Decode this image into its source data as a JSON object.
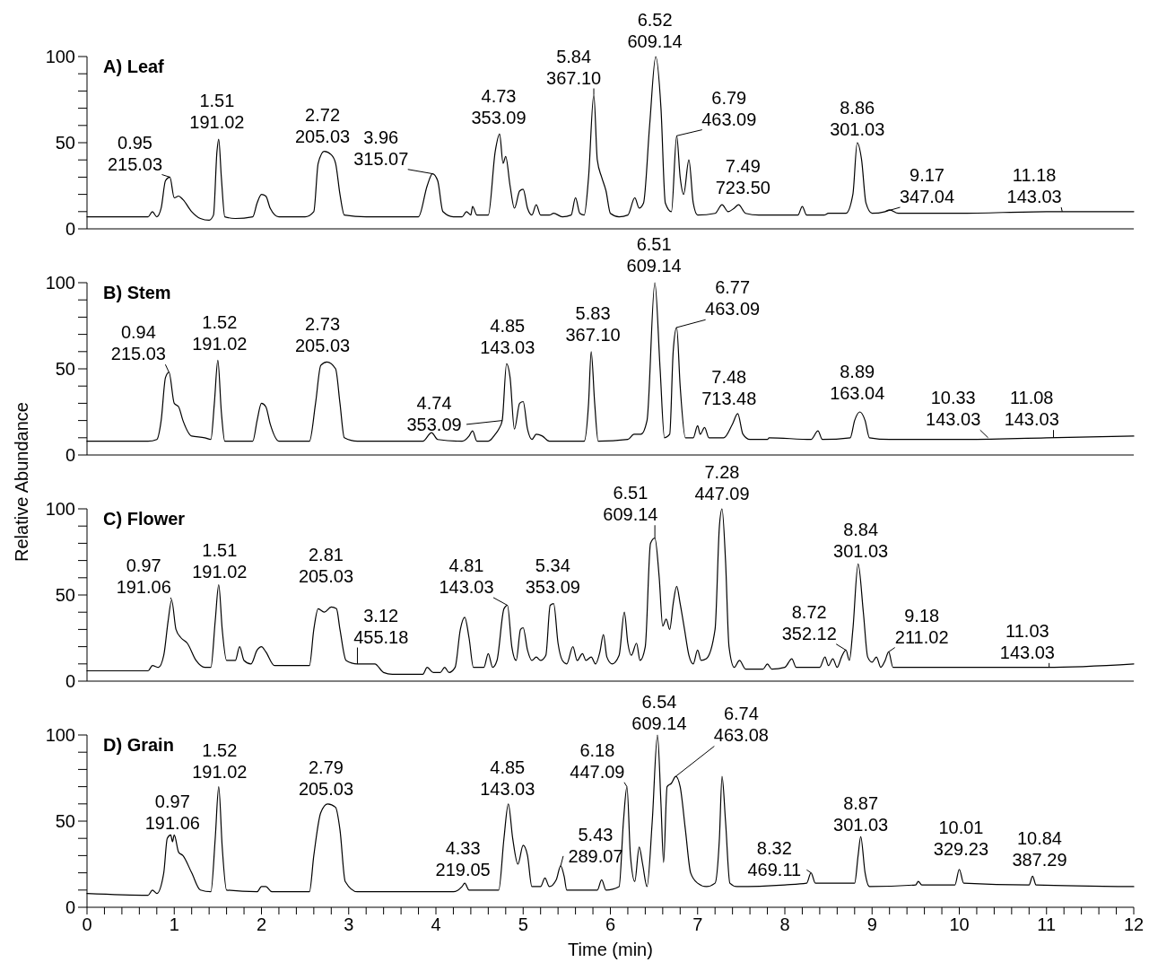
{
  "chart_data": [
    {
      "type": "line",
      "title": "A) Leaf",
      "color": "#000000",
      "xlim": [
        0,
        12
      ],
      "ylim": [
        0,
        100
      ],
      "tick_labels": "y",
      "yticks": [
        0,
        {
          "value": 10,
          "label": null
        },
        {
          "value": 20,
          "label": null
        },
        {
          "value": 30,
          "label": null
        },
        {
          "value": 40,
          "label": null
        },
        50,
        {
          "value": 60,
          "label": null
        },
        {
          "value": 70,
          "label": null
        },
        {
          "value": 80,
          "label": null
        },
        {
          "value": 90,
          "label": null
        },
        100
      ],
      "x": [
        0,
        0.7,
        0.75,
        0.8,
        0.85,
        0.9,
        0.95,
        1.0,
        1.05,
        1.1,
        1.2,
        1.3,
        1.4,
        1.45,
        1.49,
        1.51,
        1.54,
        1.58,
        1.7,
        1.9,
        1.95,
        2.0,
        2.05,
        2.1,
        2.2,
        2.5,
        2.6,
        2.65,
        2.72,
        2.8,
        2.85,
        2.9,
        2.95,
        3.2,
        3.8,
        3.9,
        3.96,
        4.02,
        4.08,
        4.2,
        4.3,
        4.35,
        4.4,
        4.42,
        4.47,
        4.6,
        4.68,
        4.73,
        4.77,
        4.8,
        4.85,
        4.9,
        4.96,
        5.0,
        5.05,
        5.1,
        5.15,
        5.2,
        5.3,
        5.35,
        5.45,
        5.55,
        5.6,
        5.65,
        5.7,
        5.75,
        5.81,
        5.85,
        5.9,
        5.95,
        6.0,
        6.1,
        6.2,
        6.28,
        6.33,
        6.38,
        6.45,
        6.52,
        6.58,
        6.63,
        6.7,
        6.76,
        6.8,
        6.84,
        6.9,
        6.95,
        7.0,
        7.2,
        7.28,
        7.35,
        7.42,
        7.47,
        7.55,
        7.7,
        8.15,
        8.2,
        8.25,
        8.45,
        8.5,
        8.7,
        8.78,
        8.83,
        8.88,
        8.93,
        9.0,
        9.15,
        9.2,
        9.3,
        10,
        11,
        12
      ],
      "values": [
        7,
        7,
        10,
        7,
        12,
        28,
        30,
        18,
        19,
        17,
        10,
        6,
        5,
        8,
        45,
        52,
        30,
        7,
        6,
        7,
        15,
        20,
        19,
        12,
        7,
        7,
        10,
        38,
        45,
        43,
        38,
        20,
        8,
        7,
        7,
        25,
        32,
        28,
        10,
        7,
        7,
        10,
        8,
        13,
        8,
        8,
        45,
        55,
        38,
        42,
        25,
        12,
        22,
        23,
        12,
        8,
        14,
        8,
        8,
        9,
        7,
        8,
        18,
        9,
        8,
        30,
        78,
        40,
        30,
        22,
        9,
        7,
        8,
        18,
        12,
        15,
        60,
        100,
        70,
        15,
        10,
        54,
        30,
        20,
        40,
        15,
        8,
        9,
        14,
        10,
        12,
        14,
        9,
        8,
        8,
        13,
        8,
        8,
        9,
        9,
        20,
        50,
        40,
        15,
        9,
        10,
        11,
        9,
        9,
        10,
        10
      ],
      "annotations": [
        {
          "text": "0.95\n215.03",
          "x": 0.95,
          "y": 30
        },
        {
          "text": "1.51\n191.02",
          "x": 1.51,
          "y": 52
        },
        {
          "text": "2.72\n205.03",
          "x": 2.72,
          "y": 45
        },
        {
          "text": "3.96\n315.07",
          "x": 3.96,
          "y": 32
        },
        {
          "text": "4.73\n353.09",
          "x": 4.73,
          "y": 55
        },
        {
          "text": "5.84\n367.10",
          "x": 5.81,
          "y": 78
        },
        {
          "text": "6.52\n609.14",
          "x": 6.52,
          "y": 100
        },
        {
          "text": "6.79\n463.09",
          "x": 6.76,
          "y": 54
        },
        {
          "text": "7.49\n723.50",
          "x": 7.47,
          "y": 14
        },
        {
          "text": "8.86\n301.03",
          "x": 8.83,
          "y": 50
        },
        {
          "text": "9.17\n347.04",
          "x": 9.15,
          "y": 10
        },
        {
          "text": "11.18\n143.03",
          "x": 11.18,
          "y": 10
        }
      ]
    },
    {
      "type": "line",
      "title": "B) Stem",
      "color": "#000000",
      "xlim": [
        0,
        12
      ],
      "ylim": [
        0,
        100
      ],
      "tick_labels": "y",
      "yticks": [
        0,
        {
          "value": 10,
          "label": null
        },
        {
          "value": 20,
          "label": null
        },
        {
          "value": 30,
          "label": null
        },
        {
          "value": 40,
          "label": null
        },
        50,
        {
          "value": 60,
          "label": null
        },
        {
          "value": 70,
          "label": null
        },
        {
          "value": 80,
          "label": null
        },
        {
          "value": 90,
          "label": null
        },
        100
      ],
      "x": [
        0,
        0.7,
        0.8,
        0.85,
        0.9,
        0.94,
        1.0,
        1.05,
        1.1,
        1.2,
        1.35,
        1.42,
        1.46,
        1.5,
        1.54,
        1.58,
        1.9,
        1.95,
        2.0,
        2.05,
        2.1,
        2.2,
        2.55,
        2.62,
        2.68,
        2.75,
        2.85,
        2.9,
        2.95,
        3.1,
        3.85,
        3.95,
        4.02,
        4.3,
        4.38,
        4.42,
        4.47,
        4.6,
        4.68,
        4.72,
        4.76,
        4.81,
        4.85,
        4.9,
        4.96,
        5.0,
        5.05,
        5.1,
        5.15,
        5.22,
        5.3,
        5.7,
        5.75,
        5.78,
        5.82,
        5.86,
        6.2,
        6.27,
        6.35,
        6.42,
        6.51,
        6.57,
        6.62,
        6.68,
        6.72,
        6.76,
        6.8,
        6.86,
        6.95,
        7.0,
        7.03,
        7.08,
        7.13,
        7.3,
        7.4,
        7.46,
        7.52,
        7.6,
        7.8,
        7.82,
        8.3,
        8.38,
        8.43,
        8.75,
        8.8,
        8.86,
        8.92,
        8.97,
        9.2,
        10,
        11,
        12
      ],
      "values": [
        8,
        8,
        9,
        20,
        45,
        48,
        30,
        28,
        20,
        11,
        10,
        9,
        30,
        55,
        25,
        8,
        8,
        20,
        30,
        28,
        18,
        8,
        8,
        30,
        52,
        54,
        50,
        30,
        10,
        8,
        8,
        13,
        9,
        8,
        11,
        14,
        8,
        8,
        12,
        15,
        20,
        53,
        45,
        15,
        30,
        31,
        15,
        9,
        12,
        11,
        8,
        8,
        30,
        60,
        30,
        8,
        9,
        12,
        12,
        20,
        100,
        50,
        10,
        12,
        60,
        74,
        40,
        10,
        10,
        17,
        12,
        16,
        10,
        10,
        18,
        24,
        12,
        9,
        9,
        10,
        9,
        14,
        9,
        10,
        20,
        25,
        20,
        10,
        9,
        9,
        10,
        11
      ],
      "annotations": [
        {
          "text": "0.94\n215.03",
          "x": 0.94,
          "y": 48
        },
        {
          "text": "1.52\n191.02",
          "x": 1.5,
          "y": 55
        },
        {
          "text": "2.73\n205.03",
          "x": 2.75,
          "y": 54
        },
        {
          "text": "4.74\n353.09",
          "x": 4.76,
          "y": 20
        },
        {
          "text": "4.85\n143.03",
          "x": 4.81,
          "y": 53
        },
        {
          "text": "5.83\n367.10",
          "x": 5.78,
          "y": 60
        },
        {
          "text": "6.51\n609.14",
          "x": 6.51,
          "y": 100
        },
        {
          "text": "6.77\n463.09",
          "x": 6.76,
          "y": 74
        },
        {
          "text": "7.48\n713.48",
          "x": 7.46,
          "y": 24
        },
        {
          "text": "8.89\n163.04",
          "x": 8.86,
          "y": 25
        },
        {
          "text": "10.33\n143.03",
          "x": 10.33,
          "y": 10
        },
        {
          "text": "11.08\n143.03",
          "x": 11.08,
          "y": 10
        }
      ]
    },
    {
      "type": "line",
      "title": "C) Flower",
      "ylabel": "Relative Abundance",
      "color": "#000000",
      "xlim": [
        0,
        12
      ],
      "ylim": [
        0,
        100
      ],
      "tick_labels": "y",
      "yticks": [
        0,
        {
          "value": 10,
          "label": null
        },
        {
          "value": 20,
          "label": null
        },
        {
          "value": 30,
          "label": null
        },
        {
          "value": 40,
          "label": null
        },
        50,
        {
          "value": 60,
          "label": null
        },
        {
          "value": 70,
          "label": null
        },
        {
          "value": 80,
          "label": null
        },
        {
          "value": 90,
          "label": null
        },
        100
      ],
      "x": [
        0,
        0.7,
        0.75,
        0.82,
        0.88,
        0.93,
        0.97,
        1.02,
        1.08,
        1.15,
        1.25,
        1.35,
        1.42,
        1.47,
        1.51,
        1.55,
        1.6,
        1.7,
        1.75,
        1.8,
        1.88,
        1.95,
        2.0,
        2.05,
        2.15,
        2.55,
        2.6,
        2.65,
        2.72,
        2.8,
        2.86,
        2.9,
        2.97,
        3.1,
        3.3,
        3.4,
        3.5,
        3.85,
        3.9,
        3.97,
        4.05,
        4.1,
        4.15,
        4.22,
        4.28,
        4.33,
        4.38,
        4.43,
        4.55,
        4.6,
        4.65,
        4.7,
        4.78,
        4.82,
        4.87,
        4.92,
        4.97,
        5.0,
        5.05,
        5.1,
        5.15,
        5.2,
        5.26,
        5.31,
        5.35,
        5.4,
        5.45,
        5.5,
        5.57,
        5.62,
        5.68,
        5.72,
        5.78,
        5.83,
        5.88,
        5.92,
        5.96,
        6.02,
        6.1,
        6.16,
        6.2,
        6.24,
        6.3,
        6.34,
        6.4,
        6.46,
        6.51,
        6.56,
        6.6,
        6.64,
        6.68,
        6.72,
        6.76,
        6.8,
        6.85,
        6.9,
        6.95,
        7.0,
        7.04,
        7.1,
        7.2,
        7.25,
        7.28,
        7.32,
        7.36,
        7.42,
        7.48,
        7.55,
        7.75,
        7.8,
        7.85,
        8.0,
        8.08,
        8.13,
        8.4,
        8.46,
        8.5,
        8.55,
        8.6,
        8.65,
        8.7,
        8.74,
        8.78,
        8.84,
        8.9,
        8.95,
        9.0,
        9.05,
        9.1,
        9.15,
        9.19,
        9.24,
        9.35,
        10,
        11,
        12
      ],
      "values": [
        6,
        6,
        9,
        8,
        15,
        35,
        47,
        30,
        25,
        22,
        12,
        8,
        8,
        35,
        56,
        30,
        12,
        12,
        20,
        12,
        10,
        18,
        20,
        17,
        9,
        9,
        30,
        42,
        40,
        43,
        42,
        30,
        12,
        10,
        10,
        5,
        4,
        4,
        8,
        5,
        5,
        8,
        5,
        8,
        30,
        37,
        25,
        8,
        8,
        16,
        8,
        12,
        42,
        44,
        20,
        12,
        30,
        31,
        18,
        12,
        14,
        12,
        15,
        44,
        45,
        22,
        12,
        10,
        20,
        12,
        16,
        12,
        14,
        10,
        17,
        27,
        14,
        10,
        15,
        40,
        22,
        15,
        22,
        12,
        20,
        80,
        83,
        60,
        32,
        36,
        30,
        45,
        55,
        45,
        30,
        15,
        10,
        18,
        12,
        13,
        30,
        90,
        100,
        70,
        20,
        8,
        12,
        7,
        7,
        10,
        7,
        8,
        13,
        8,
        8,
        14,
        9,
        13,
        8,
        14,
        18,
        12,
        30,
        68,
        40,
        14,
        11,
        14,
        8,
        12,
        17,
        8,
        8,
        8,
        8,
        10
      ],
      "annotations": [
        {
          "text": "0.97\n191.06",
          "x": 0.97,
          "y": 47
        },
        {
          "text": "1.51\n191.02",
          "x": 1.51,
          "y": 56
        },
        {
          "text": "2.81\n205.03",
          "x": 2.8,
          "y": 43
        },
        {
          "text": "3.12\n455.18",
          "x": 3.1,
          "y": 10
        },
        {
          "text": "4.81\n143.03",
          "x": 4.82,
          "y": 44
        },
        {
          "text": "5.34\n353.09",
          "x": 5.35,
          "y": 45
        },
        {
          "text": "6.51\n609.14",
          "x": 6.51,
          "y": 83
        },
        {
          "text": "7.28\n447.09",
          "x": 7.28,
          "y": 100
        },
        {
          "text": "8.84\n301.03",
          "x": 8.84,
          "y": 68
        },
        {
          "text": "8.72\n352.12",
          "x": 8.7,
          "y": 18
        },
        {
          "text": "9.18\n211.02",
          "x": 9.19,
          "y": 17
        },
        {
          "text": "11.03\n143.03",
          "x": 11.03,
          "y": 8
        }
      ]
    },
    {
      "type": "line",
      "title": "D) Grain",
      "xlabel": "Time (min)",
      "color": "#000000",
      "xlim": [
        0,
        12
      ],
      "ylim": [
        0,
        100
      ],
      "xticks": [
        0,
        {
          "value": 0.2,
          "label": null
        },
        {
          "value": 0.4,
          "label": null
        },
        {
          "value": 0.6,
          "label": null
        },
        {
          "value": 0.8,
          "label": null
        },
        1,
        {
          "value": 1.2,
          "label": null
        },
        {
          "value": 1.4,
          "label": null
        },
        {
          "value": 1.6,
          "label": null
        },
        {
          "value": 1.8,
          "label": null
        },
        2,
        {
          "value": 2.2,
          "label": null
        },
        {
          "value": 2.4,
          "label": null
        },
        {
          "value": 2.6,
          "label": null
        },
        {
          "value": 2.8,
          "label": null
        },
        3,
        {
          "value": 3.2,
          "label": null
        },
        {
          "value": 3.4,
          "label": null
        },
        {
          "value": 3.6,
          "label": null
        },
        {
          "value": 3.8,
          "label": null
        },
        4,
        {
          "value": 4.2,
          "label": null
        },
        {
          "value": 4.4,
          "label": null
        },
        {
          "value": 4.6,
          "label": null
        },
        {
          "value": 4.8,
          "label": null
        },
        5,
        {
          "value": 5.2,
          "label": null
        },
        {
          "value": 5.4,
          "label": null
        },
        {
          "value": 5.6,
          "label": null
        },
        {
          "value": 5.8,
          "label": null
        },
        6,
        {
          "value": 6.2,
          "label": null
        },
        {
          "value": 6.4,
          "label": null
        },
        {
          "value": 6.6,
          "label": null
        },
        {
          "value": 6.8,
          "label": null
        },
        7,
        {
          "value": 7.2,
          "label": null
        },
        {
          "value": 7.4,
          "label": null
        },
        {
          "value": 7.6,
          "label": null
        },
        {
          "value": 7.8,
          "label": null
        },
        8,
        {
          "value": 8.2,
          "label": null
        },
        {
          "value": 8.4,
          "label": null
        },
        {
          "value": 8.6,
          "label": null
        },
        {
          "value": 8.8,
          "label": null
        },
        9,
        {
          "value": 9.2,
          "label": null
        },
        {
          "value": 9.4,
          "label": null
        },
        {
          "value": 9.6,
          "label": null
        },
        {
          "value": 9.8,
          "label": null
        },
        10,
        {
          "value": 10.2,
          "label": null
        },
        {
          "value": 10.4,
          "label": null
        },
        {
          "value": 10.6,
          "label": null
        },
        {
          "value": 10.8,
          "label": null
        },
        11,
        {
          "value": 11.2,
          "label": null
        },
        {
          "value": 11.4,
          "label": null
        },
        {
          "value": 11.6,
          "label": null
        },
        {
          "value": 11.8,
          "label": null
        },
        12
      ],
      "yticks": [
        0,
        {
          "value": 10,
          "label": null
        },
        {
          "value": 20,
          "label": null
        },
        {
          "value": 30,
          "label": null
        },
        {
          "value": 40,
          "label": null
        },
        50,
        {
          "value": 60,
          "label": null
        },
        {
          "value": 70,
          "label": null
        },
        {
          "value": 80,
          "label": null
        },
        {
          "value": 90,
          "label": null
        },
        100
      ],
      "x": [
        0,
        0.7,
        0.75,
        0.8,
        0.88,
        0.92,
        0.96,
        0.98,
        1.0,
        1.05,
        1.1,
        1.2,
        1.3,
        1.42,
        1.47,
        1.51,
        1.55,
        1.6,
        1.95,
        2.0,
        2.05,
        2.12,
        2.55,
        2.6,
        2.68,
        2.76,
        2.85,
        2.9,
        2.96,
        3.1,
        4.2,
        4.3,
        4.33,
        4.38,
        4.72,
        4.78,
        4.83,
        4.88,
        4.94,
        5.0,
        5.05,
        5.1,
        5.2,
        5.25,
        5.3,
        5.38,
        5.43,
        5.47,
        5.5,
        5.85,
        5.9,
        5.95,
        6.1,
        6.15,
        6.19,
        6.23,
        6.28,
        6.33,
        6.37,
        6.42,
        6.48,
        6.54,
        6.58,
        6.61,
        6.65,
        6.7,
        6.75,
        6.8,
        6.86,
        6.92,
        7.0,
        7.1,
        7.2,
        7.25,
        7.28,
        7.32,
        7.37,
        7.45,
        8.0,
        8.25,
        8.3,
        8.35,
        8.8,
        8.84,
        8.87,
        8.92,
        8.97,
        9.5,
        9.53,
        9.57,
        9.95,
        10.0,
        10.05,
        10.8,
        10.84,
        10.88,
        12
      ],
      "values": [
        8,
        7,
        10,
        8,
        20,
        40,
        42,
        38,
        42,
        32,
        30,
        20,
        10,
        9,
        40,
        70,
        35,
        10,
        9,
        12,
        12,
        9,
        9,
        30,
        55,
        60,
        58,
        45,
        15,
        9,
        9,
        12,
        14,
        10,
        10,
        40,
        60,
        40,
        25,
        36,
        30,
        12,
        12,
        17,
        12,
        16,
        24,
        18,
        10,
        10,
        16,
        10,
        12,
        50,
        70,
        30,
        15,
        35,
        25,
        12,
        50,
        100,
        60,
        26,
        70,
        72,
        76,
        70,
        45,
        20,
        14,
        12,
        14,
        40,
        76,
        50,
        14,
        12,
        13,
        14,
        20,
        14,
        14,
        30,
        41,
        20,
        12,
        13,
        15,
        13,
        13,
        22,
        14,
        13,
        18,
        13,
        12
      ],
      "annotations": [
        {
          "text": "0.97\n191.06",
          "x": 0.96,
          "y": 42
        },
        {
          "text": "1.52\n191.02",
          "x": 1.51,
          "y": 70
        },
        {
          "text": "2.79\n205.03",
          "x": 2.76,
          "y": 60
        },
        {
          "text": "4.33\n219.05",
          "x": 4.33,
          "y": 14
        },
        {
          "text": "4.85\n143.03",
          "x": 4.83,
          "y": 60
        },
        {
          "text": "5.43\n289.07",
          "x": 5.43,
          "y": 24
        },
        {
          "text": "6.18\n447.09",
          "x": 6.19,
          "y": 70
        },
        {
          "text": "6.54\n609.14",
          "x": 6.54,
          "y": 100
        },
        {
          "text": "6.74\n463.08",
          "x": 6.75,
          "y": 76
        },
        {
          "text": "8.32\n469.11",
          "x": 8.3,
          "y": 20
        },
        {
          "text": "8.87\n301.03",
          "x": 8.87,
          "y": 41
        },
        {
          "text": "10.01\n329.23",
          "x": 10.0,
          "y": 22
        },
        {
          "text": "10.84\n387.29",
          "x": 10.84,
          "y": 18
        }
      ]
    }
  ]
}
